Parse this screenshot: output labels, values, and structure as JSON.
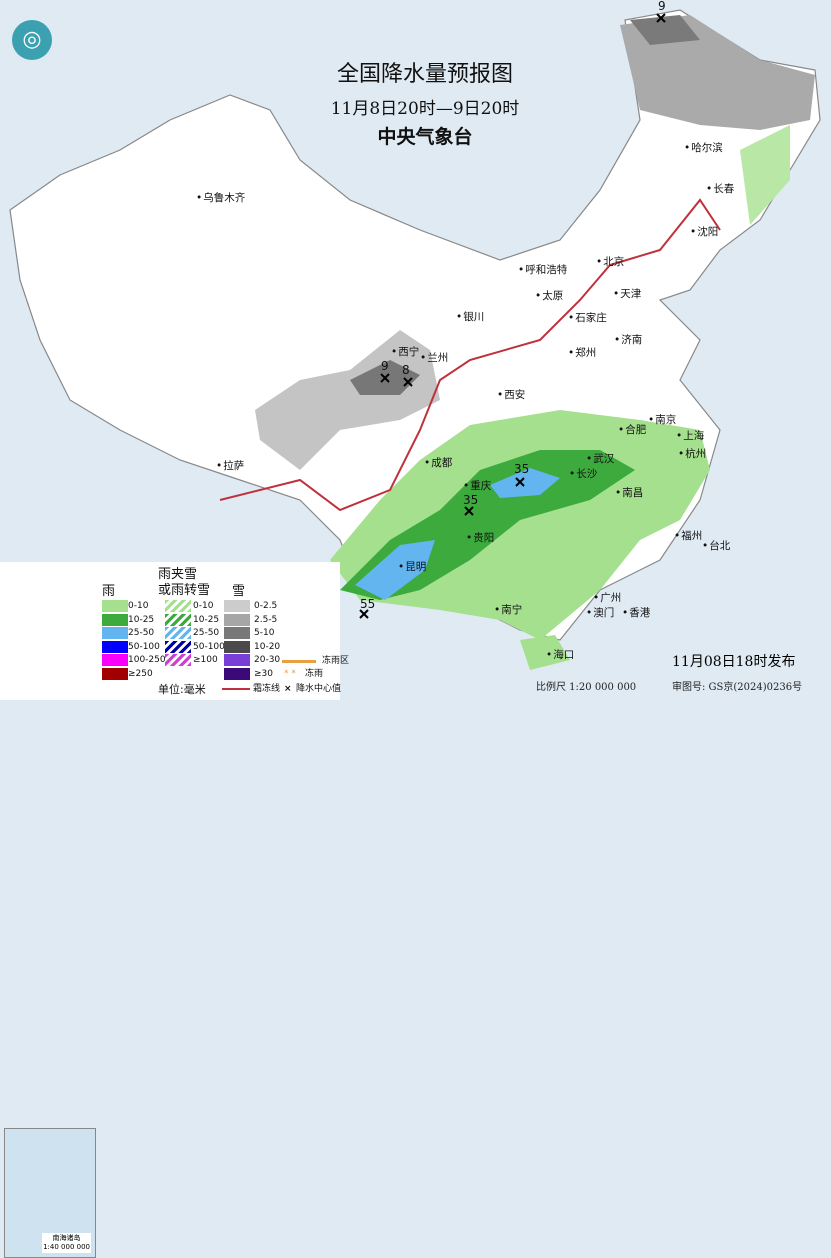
{
  "header": {
    "title": "全国降水量预报图",
    "period": "11月8日20时—9日20时",
    "agency": "中央气象台",
    "logo": "cma-logo"
  },
  "cities": [
    "乌鲁木齐",
    "哈尔滨",
    "长春",
    "沈阳",
    "呼和浩特",
    "北京",
    "天津",
    "石家庄",
    "太原",
    "银川",
    "西宁",
    "兰州",
    "济南",
    "郑州",
    "西安",
    "合肥",
    "南京",
    "上海",
    "杭州",
    "武汉",
    "成都",
    "重庆",
    "长沙",
    "南昌",
    "拉萨",
    "贵阳",
    "昆明",
    "福州",
    "台北",
    "广州",
    "澳门",
    "香港",
    "南宁",
    "海口"
  ],
  "center_values": [
    "9",
    "9",
    "8",
    "35",
    "35",
    "55"
  ],
  "legend": {
    "rain": {
      "title": "雨",
      "items": [
        {
          "label": "0-10",
          "color": "#a5e08e"
        },
        {
          "label": "10-25",
          "color": "#3caa3c"
        },
        {
          "label": "25-50",
          "color": "#62b5ef"
        },
        {
          "label": "50-100",
          "color": "#0000ff"
        },
        {
          "label": "100-250",
          "color": "#fa00fa"
        },
        {
          "label": "≥250",
          "color": "#a00000"
        }
      ]
    },
    "sleet": {
      "title": "雨夹雪",
      "title2": "或雨转雪",
      "items": [
        {
          "label": "0-10",
          "color": "#a5e08e"
        },
        {
          "label": "10-25",
          "color": "#3caa3c"
        },
        {
          "label": "25-50",
          "color": "#62b5ef"
        },
        {
          "label": "50-100",
          "color": "#0000aa"
        },
        {
          "label": "≥100",
          "color": "#d040d0"
        }
      ]
    },
    "snow": {
      "title": "雪",
      "items": [
        {
          "label": "0-2.5",
          "color": "#cccccc"
        },
        {
          "label": "2.5-5",
          "color": "#a6a6a6"
        },
        {
          "label": "5-10",
          "color": "#787878"
        },
        {
          "label": "10-20",
          "color": "#4a4a4a"
        },
        {
          "label": "20-30",
          "color": "#7a3ed8"
        },
        {
          "label": "≥30",
          "color": "#3c0a78"
        }
      ]
    },
    "unit": "单位:毫米",
    "freezing_rain_area": "冻雨区",
    "freezing_rain": "冻雨",
    "frost_line": "霜冻线",
    "center_marker": "降水中心值",
    "inset_title": "南海诸岛",
    "inset_scale": "1:40 000 000"
  },
  "footer": {
    "issued": "11月08日18时发布",
    "scale": "比例尺 1:20 000 000",
    "approval": "审图号: GS京(2024)0236号"
  }
}
